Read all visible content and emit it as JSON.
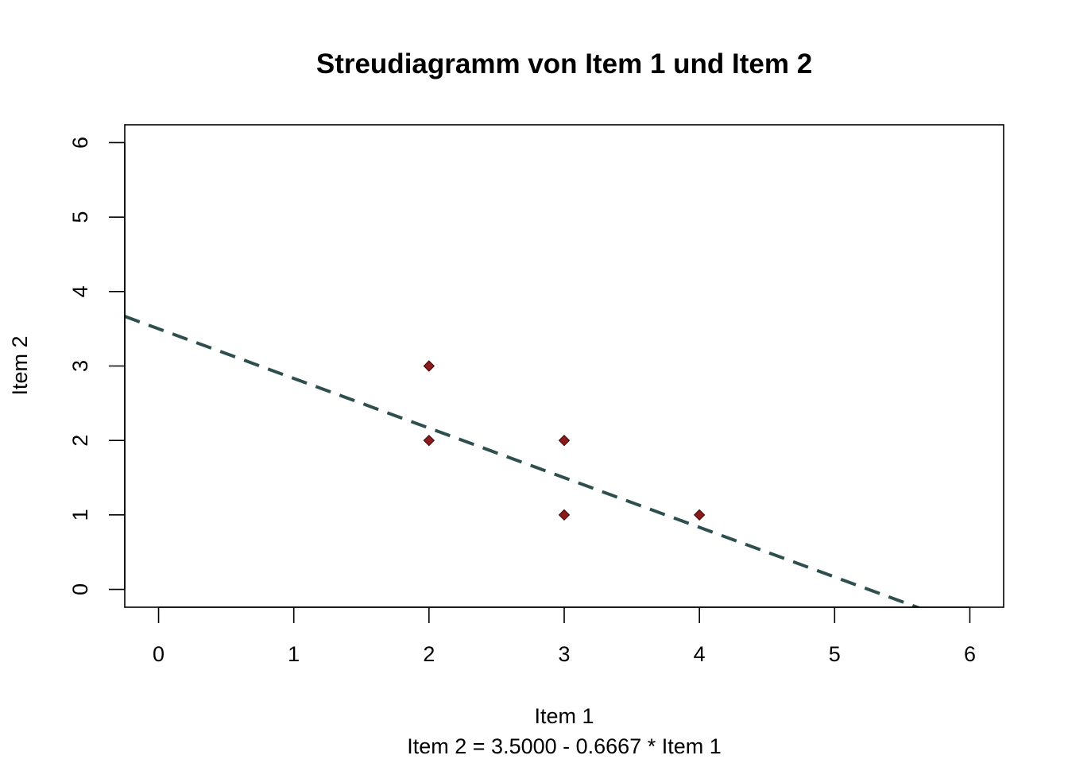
{
  "chart_data": {
    "type": "scatter",
    "title": "Streudiagramm von Item 1 und Item 2",
    "xlabel": "Item 1",
    "ylabel": "Item 2",
    "subtitle": "Item 2 = 3.5000 - 0.6667 * Item 1",
    "xlim": [
      -0.25,
      6.25
    ],
    "ylim": [
      -0.24,
      6.24
    ],
    "xticks": [
      "0",
      "1",
      "2",
      "3",
      "4",
      "5",
      "6"
    ],
    "yticks": [
      "0",
      "1",
      "2",
      "3",
      "4",
      "5",
      "6"
    ],
    "points": [
      {
        "x": 2,
        "y": 3
      },
      {
        "x": 2,
        "y": 2
      },
      {
        "x": 3,
        "y": 2
      },
      {
        "x": 3,
        "y": 1
      },
      {
        "x": 4,
        "y": 1
      }
    ],
    "regression": {
      "intercept": 3.5,
      "slope": -0.6667
    },
    "colors": {
      "point": "#8b1a1a",
      "line": "#2f4f4f"
    },
    "grid": false,
    "legend": "none"
  }
}
